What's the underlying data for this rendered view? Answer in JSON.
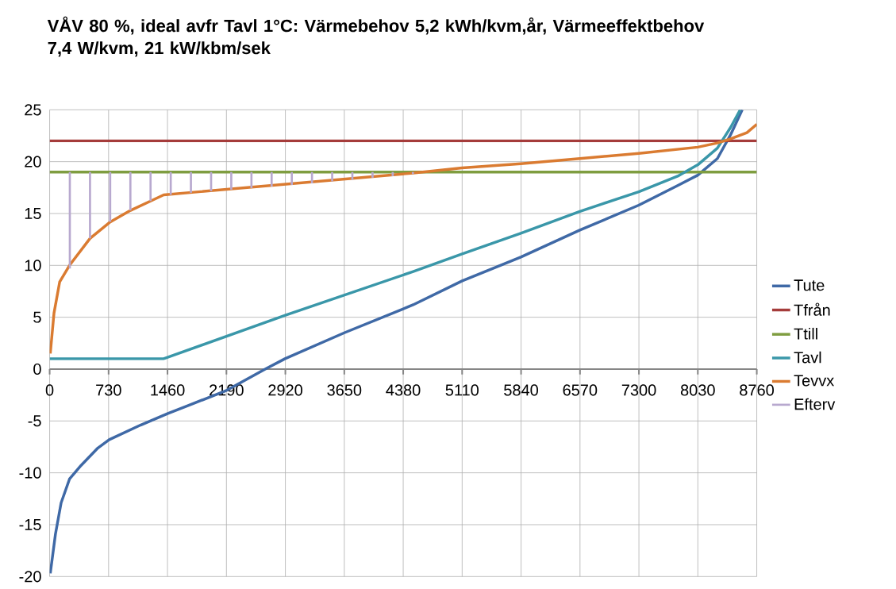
{
  "chart_data": {
    "type": "line",
    "title": "VÅV 80 %, ideal avfr Tavl 1°C: Värmebehov 5,2 kWh/kvm,år, Värmeeffektbehov 7,4 W/kvm, 21 kW/kbm/sek",
    "xlim": [
      0,
      8760
    ],
    "xticks": [
      0,
      730,
      1460,
      2190,
      2920,
      3650,
      4380,
      5110,
      5840,
      6570,
      7300,
      8030,
      8760
    ],
    "ylim": [
      -20,
      25
    ],
    "yticks": [
      -20,
      -15,
      -10,
      -5,
      0,
      5,
      10,
      15,
      20,
      25
    ],
    "grid": true,
    "legend": "right",
    "marker": "none",
    "line_style": "solid",
    "series": [
      {
        "name": "Tute",
        "color": "#3f69a6",
        "x": [
          8,
          72,
          142,
          246,
          388,
          598,
          738,
          1125,
          1459,
          2179,
          2670,
          2916,
          3650,
          4503,
          5110,
          5837,
          6568,
          7298,
          7780,
          8030,
          8272,
          8436,
          8580
        ],
        "values": [
          -19.7,
          -15.9,
          -12.9,
          -10.6,
          -9.3,
          -7.6,
          -6.8,
          -5.4,
          -4.3,
          -2.1,
          0,
          1.0,
          3.5,
          6.2,
          8.5,
          10.8,
          13.4,
          15.8,
          17.7,
          18.7,
          20.3,
          22.6,
          25
        ]
      },
      {
        "name": "Tfrån",
        "color": "#a53c3b",
        "x": [
          0,
          8760
        ],
        "values": [
          22,
          22
        ]
      },
      {
        "name": "Ttill",
        "color": "#7f9d40",
        "x": [
          0,
          8760
        ],
        "values": [
          19,
          19
        ]
      },
      {
        "name": "Tavl",
        "color": "#3a97a9",
        "x": [
          0,
          1413,
          2920,
          4503,
          5110,
          5837,
          6568,
          7298,
          7780,
          8030,
          8272,
          8436,
          8555
        ],
        "values": [
          1,
          1,
          5.2,
          9.4,
          11.1,
          13.1,
          15.2,
          17.1,
          18.6,
          19.7,
          21.3,
          23.3,
          25
        ]
      },
      {
        "name": "Tevvx",
        "color": "#da7b31",
        "x": [
          8,
          54,
          124,
          246,
          500,
          753,
          1002,
          1251,
          1413,
          4503,
          5110,
          5837,
          6568,
          7298,
          8030,
          8272,
          8436,
          8638,
          8760
        ],
        "values": [
          1.5,
          5.4,
          8.4,
          10.0,
          12.6,
          14.2,
          15.3,
          16.2,
          16.8,
          18.9,
          19.4,
          19.8,
          20.3,
          20.8,
          21.4,
          21.8,
          22.2,
          22.8,
          23.6
        ]
      },
      {
        "name": "Efterv",
        "type": "bar",
        "color": "#b8a9cf",
        "x": [
          250,
          500,
          750,
          1000,
          1250,
          1500,
          1750,
          2000,
          2250,
          2500,
          2750,
          3000,
          3250,
          3500,
          3750,
          4000,
          4250,
          4500
        ],
        "base": [
          9.7,
          12.6,
          14.2,
          15.3,
          16.2,
          16.8,
          17.0,
          17.15,
          17.3,
          17.45,
          17.6,
          17.75,
          17.9,
          18.1,
          18.25,
          18.45,
          18.6,
          18.8
        ],
        "values": [
          9.3,
          6.4,
          4.8,
          3.7,
          2.8,
          2.2,
          2.0,
          1.85,
          1.7,
          1.55,
          1.4,
          1.25,
          1.1,
          0.9,
          0.75,
          0.55,
          0.4,
          0.2
        ]
      }
    ]
  }
}
